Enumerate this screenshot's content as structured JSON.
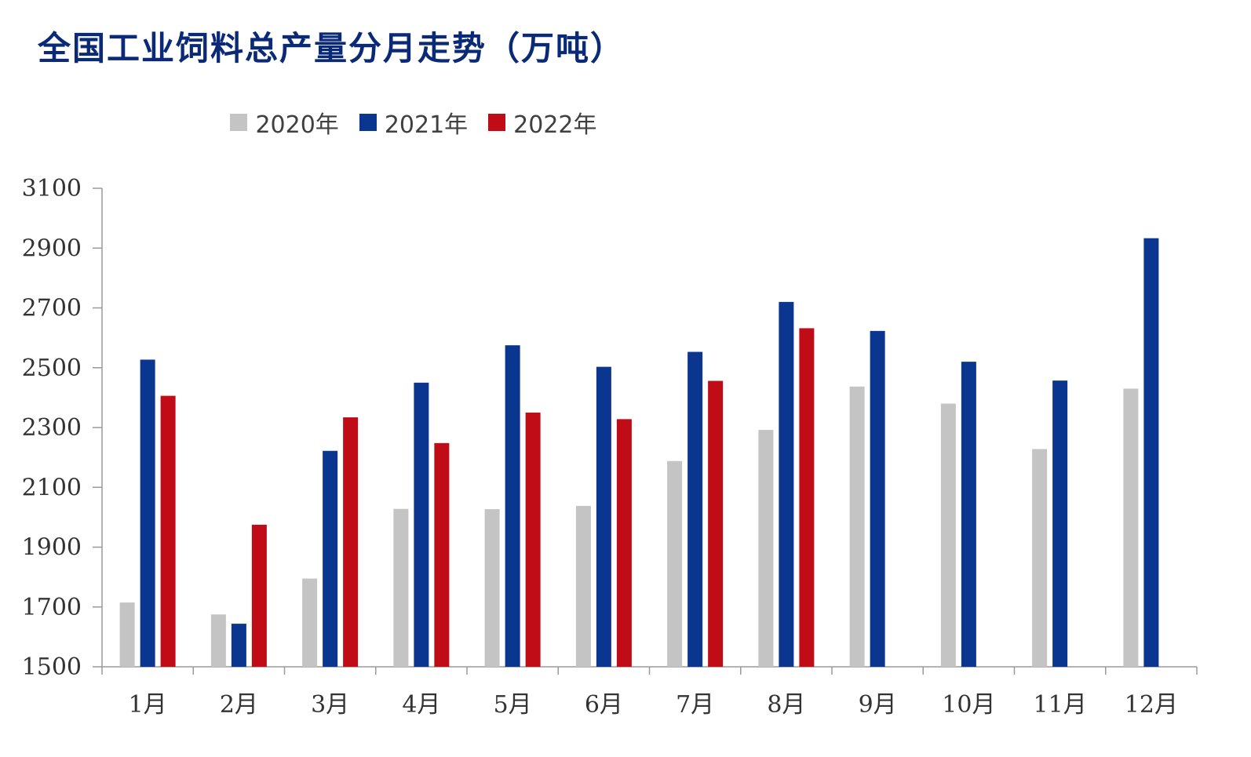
{
  "chart_data": {
    "type": "bar",
    "title": "全国工业饲料总产量分月走势（万吨）",
    "categories": [
      "1月",
      "2月",
      "3月",
      "4月",
      "5月",
      "6月",
      "7月",
      "8月",
      "9月",
      "10月",
      "11月",
      "12月"
    ],
    "series": [
      {
        "name": "2020年",
        "color": "#c4c4c4",
        "values": [
          1715,
          1675,
          1795,
          2028,
          2027,
          2038,
          2188,
          2292,
          2437,
          2380,
          2228,
          2430
        ]
      },
      {
        "name": "2021年",
        "color": "#0b3690",
        "values": [
          2527,
          1644,
          2222,
          2450,
          2575,
          2503,
          2553,
          2720,
          2623,
          2520,
          2457,
          2933
        ]
      },
      {
        "name": "2022年",
        "color": "#c00c17",
        "values": [
          2406,
          1975,
          2334,
          2248,
          2350,
          2328,
          2456,
          2632,
          null,
          null,
          null,
          null
        ]
      }
    ],
    "ylim": [
      1500,
      3100
    ],
    "yticks": [
      1500,
      1700,
      1900,
      2100,
      2300,
      2500,
      2700,
      2900,
      3100
    ],
    "legend_position": "top",
    "grid": false
  }
}
